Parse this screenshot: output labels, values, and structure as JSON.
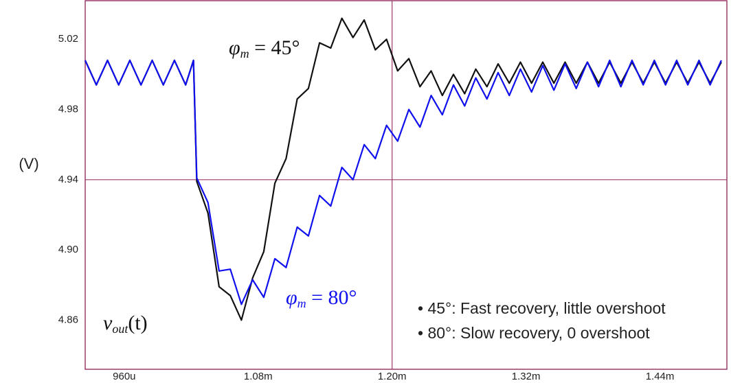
{
  "chart_data": {
    "type": "line",
    "y_label": "(V)",
    "x": [
      0.000925,
      0.000935,
      0.000945,
      0.000955,
      0.000965,
      0.000975,
      0.000985,
      0.000995,
      0.001005,
      0.001015,
      0.001022,
      0.001025,
      0.001035,
      0.001045,
      0.001055,
      0.001065,
      0.001075,
      0.001085,
      0.001095,
      0.001105,
      0.001115,
      0.001125,
      0.001135,
      0.001145,
      0.001155,
      0.001165,
      0.001175,
      0.001185,
      0.001195,
      0.001205,
      0.001215,
      0.001225,
      0.001235,
      0.001245,
      0.001255,
      0.001265,
      0.001275,
      0.001285,
      0.001295,
      0.001305,
      0.001315,
      0.001325,
      0.001335,
      0.001345,
      0.001355,
      0.001365,
      0.001375,
      0.001385,
      0.001395,
      0.001405,
      0.001415,
      0.001425,
      0.001435,
      0.001445,
      0.001455,
      0.001465,
      0.001475,
      0.001485,
      0.001495
    ],
    "series": [
      {
        "color": "#111111",
        "values": [
          5.008,
          4.994,
          5.008,
          4.994,
          5.008,
          4.994,
          5.008,
          4.994,
          5.008,
          4.994,
          5.008,
          4.939,
          4.921,
          4.879,
          4.874,
          4.86,
          4.884,
          4.899,
          4.938,
          4.952,
          4.986,
          4.992,
          5.018,
          5.015,
          5.032,
          5.021,
          5.031,
          5.014,
          5.02,
          5.002,
          5.009,
          4.993,
          5.002,
          4.988,
          5.0,
          4.989,
          5.003,
          4.993,
          5.006,
          4.995,
          5.007,
          4.995,
          5.007,
          4.995,
          5.007,
          4.995,
          5.007,
          4.995,
          5.007,
          4.995,
          5.007,
          4.995,
          5.007,
          4.995,
          5.007,
          4.995,
          5.007,
          4.995,
          5.007
        ]
      },
      {
        "color": "#1010ee",
        "values": [
          5.008,
          4.994,
          5.008,
          4.994,
          5.008,
          4.994,
          5.008,
          4.994,
          5.008,
          4.994,
          5.008,
          4.941,
          4.927,
          4.888,
          4.889,
          4.869,
          4.883,
          4.873,
          4.895,
          4.89,
          4.913,
          4.908,
          4.931,
          4.925,
          4.947,
          4.94,
          4.96,
          4.952,
          4.971,
          4.962,
          4.98,
          4.97,
          4.988,
          4.977,
          4.994,
          4.982,
          4.998,
          4.986,
          5.001,
          4.988,
          5.003,
          4.99,
          5.005,
          4.991,
          5.006,
          4.992,
          5.007,
          4.993,
          5.008,
          4.993,
          5.008,
          4.994,
          5.008,
          4.994,
          5.008,
          4.994,
          5.008,
          4.994,
          5.008
        ]
      }
    ],
    "xlim": [
      0.000925,
      0.0015
    ],
    "ylim": [
      4.832,
      5.042
    ],
    "xticks": [
      {
        "value": 0.00096,
        "label": "960u"
      },
      {
        "value": 0.00108,
        "label": "1.08m"
      },
      {
        "value": 0.0012,
        "label": "1.20m"
      },
      {
        "value": 0.00132,
        "label": "1.32m"
      },
      {
        "value": 0.00144,
        "label": "1.44m"
      }
    ],
    "yticks": [
      {
        "value": 4.86,
        "label": "4.86"
      },
      {
        "value": 4.9,
        "label": "4.90"
      },
      {
        "value": 4.94,
        "label": "4.94"
      },
      {
        "value": 4.98,
        "label": "4.98"
      },
      {
        "value": 5.02,
        "label": "5.02"
      }
    ],
    "grid_x_tick": 2,
    "grid_y_tick": 2,
    "frame_color": "#9b3a6a",
    "annotations": [
      {
        "main": "φ",
        "sub": "m",
        "rest": " = 45°",
        "color": "#111111"
      },
      {
        "main": "φ",
        "sub": "m",
        "rest": " = 80°",
        "color": "#1010ee"
      },
      {
        "main": "v",
        "sub": "out",
        "rest": "(t)",
        "color": "#111111"
      }
    ],
    "notes": [
      "• 45°: Fast recovery, little overshoot",
      "• 80°: Slow recovery, 0 overshoot"
    ]
  }
}
